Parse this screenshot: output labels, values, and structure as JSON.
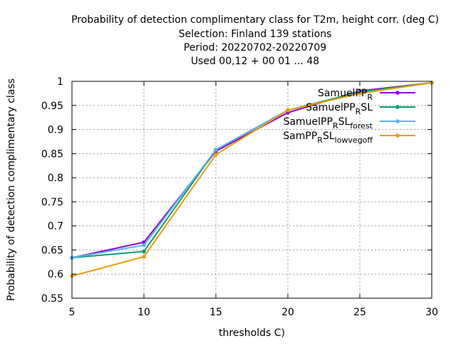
{
  "chart_data": {
    "type": "line",
    "title_lines": [
      "Probability of detection complimentary class  for T2m, height corr. (deg C)",
      "Selection: Finland    139 stations",
      "Period: 20220702-20220709",
      "Used  00,12  + 00 01 ... 48"
    ],
    "xlabel": "thresholds C)",
    "ylabel": "Probability of detection complimentary class",
    "xlim": [
      5,
      30
    ],
    "ylim": [
      0.55,
      1.0
    ],
    "x_ticks": [
      5,
      10,
      15,
      20,
      25,
      30
    ],
    "y_ticks": [
      0.55,
      0.6,
      0.65,
      0.7,
      0.75,
      0.8,
      0.85,
      0.9,
      0.95,
      1.0
    ],
    "x_tick_labels": [
      "5",
      "10",
      "15",
      "20",
      "25",
      "30"
    ],
    "y_tick_labels": [
      "0.55",
      "0.6",
      "0.65",
      "0.7",
      "0.75",
      "0.8",
      "0.85",
      "0.9",
      "0.95",
      "1"
    ],
    "grid": true,
    "legend_position": "top-right",
    "x": [
      5,
      10,
      15,
      20,
      25,
      30
    ],
    "series": [
      {
        "name": "SamuelPP",
        "name_main": "SamuelPP",
        "name_sub": "R",
        "name_tail": "",
        "color": "#9400d3",
        "values": [
          0.634,
          0.666,
          0.855,
          0.935,
          0.98,
          0.997
        ]
      },
      {
        "name": "SamuelPP_R SL",
        "name_main": "SamuelPP",
        "name_sub": "R",
        "name_tail": "SL",
        "color": "#009e73",
        "values": [
          0.634,
          0.647,
          0.858,
          0.94,
          0.978,
          0.997
        ]
      },
      {
        "name": "SamuelPP_R SL_forest",
        "name_main": "SamuelPP",
        "name_sub": "R",
        "name_tail": "SL",
        "name_sub2": "forest",
        "color": "#56b4e9",
        "values": [
          0.634,
          0.66,
          0.858,
          0.94,
          0.975,
          0.997
        ]
      },
      {
        "name": "SamPP_R SL_lowvegoff",
        "name_main": "SamPP",
        "name_sub": "R",
        "name_tail": "SL",
        "name_sub2": "lowvegoff",
        "color": "#e69f00",
        "values": [
          0.596,
          0.636,
          0.848,
          0.94,
          0.975,
          0.997
        ]
      }
    ]
  }
}
